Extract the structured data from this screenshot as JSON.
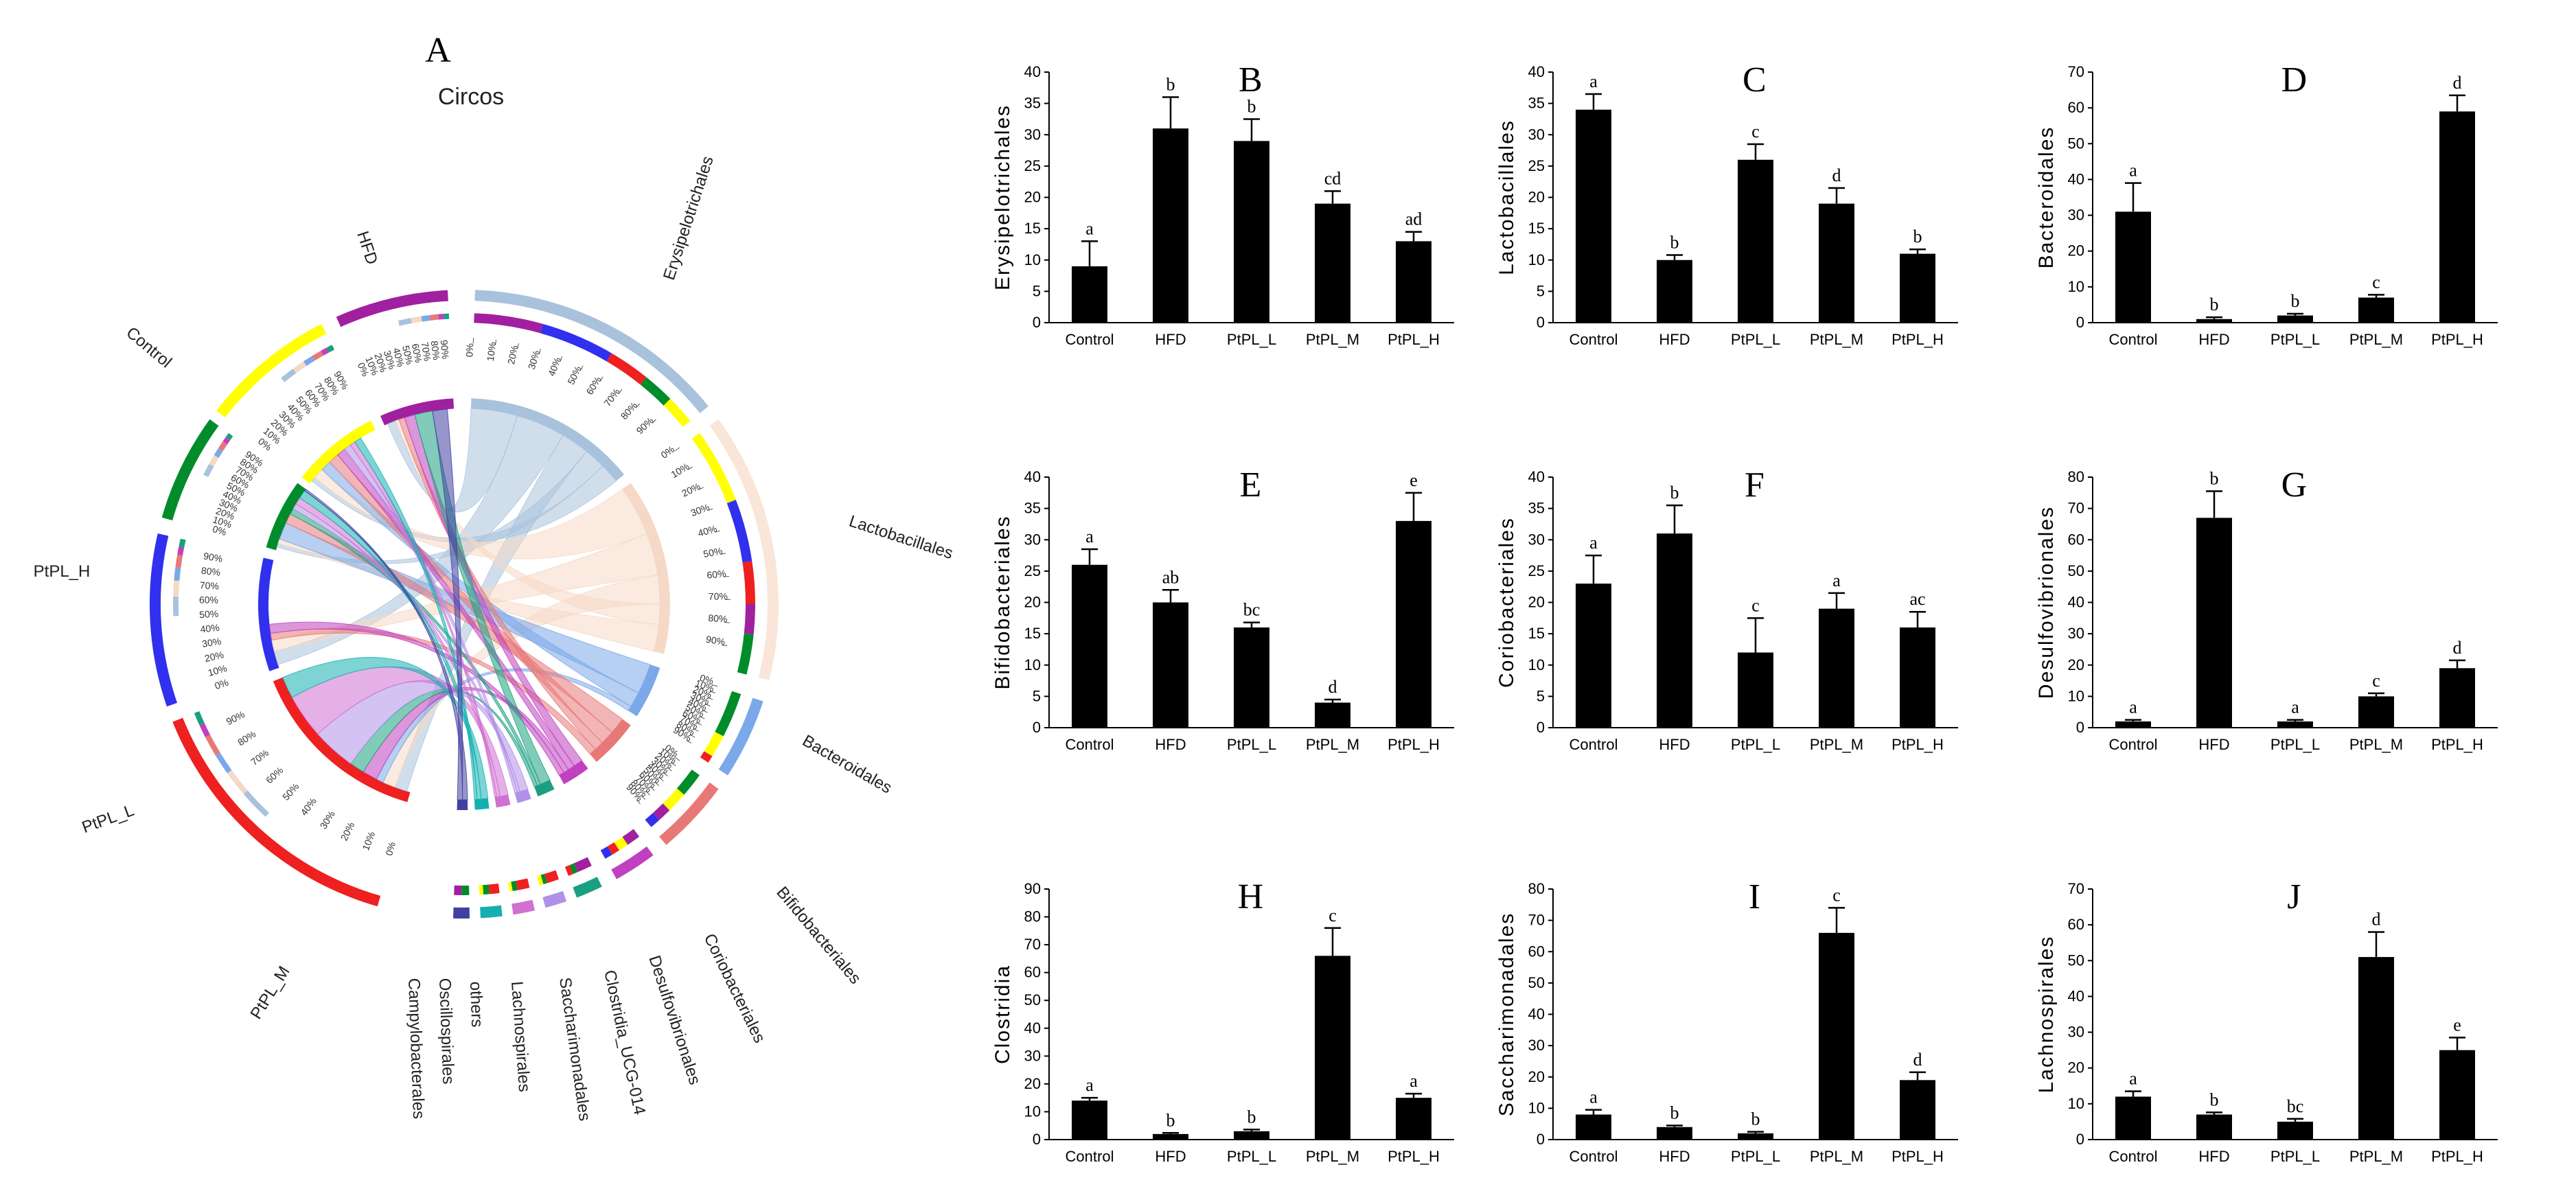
{
  "circos": {
    "panel": "A",
    "title": "Circos",
    "groups": [
      "HFD",
      "Control",
      "PtPL_H",
      "PtPL_L",
      "PtPL_M"
    ],
    "taxa": [
      "Erysipelotrichales",
      "Lactobacillales",
      "Bacteroidales",
      "Bifidobacteriales",
      "Coriobacteriales",
      "Desulfovibrionales",
      "Clostridia_UCG-014",
      "Saccharimonadales",
      "Lachnospirales",
      "others",
      "Oscillospirales",
      "Campylobacterales"
    ],
    "pct_labels": [
      "0%",
      "10%",
      "20%",
      "30%",
      "40%",
      "50%",
      "60%",
      "70%",
      "80%",
      "90%"
    ],
    "colors": {
      "HFD": "#a020a0",
      "Control": "#ffff00",
      "PtPL_H": "#008c2a",
      "PtPL_L": "#3030ee",
      "PtPL_M": "#ee2020",
      "Erysipelotrichales": "#a9c2dc",
      "Lactobacillales": "#f9e6d8",
      "Bacteroidales": "#7aa8e8",
      "Bifidobacteriales": "#e87878",
      "Coriobacteriales": "#c040c0",
      "Desulfovibrionales": "#1aa080",
      "Clostridia_UCG-014": "#b090e8",
      "Saccharimonadales": "#d070d0",
      "Lachnospirales": "#14b0b0",
      "others": "#4040a0",
      "Oscillospirales": "#ffffff",
      "Campylobacterales": "#ffffff"
    }
  },
  "chart_data": [
    {
      "panel": "B",
      "type": "bar",
      "ylabel": "Erysipelotrichales",
      "categories": [
        "Control",
        "HFD",
        "PtPL_L",
        "PtPL_M",
        "PtPL_H"
      ],
      "values": [
        9,
        31,
        29,
        19,
        13
      ],
      "errors": [
        4,
        5,
        3.5,
        2,
        1.5
      ],
      "letters": [
        "a",
        "b",
        "b",
        "cd",
        "ad"
      ],
      "ylim": [
        0,
        40
      ],
      "ticks": [
        0,
        5,
        10,
        15,
        20,
        25,
        30,
        35,
        40
      ]
    },
    {
      "panel": "C",
      "type": "bar",
      "ylabel": "Lactobacillales",
      "categories": [
        "Control",
        "HFD",
        "PtPL_L",
        "PtPL_M",
        "PtPL_H"
      ],
      "values": [
        34,
        10,
        26,
        19,
        11
      ],
      "errors": [
        2.5,
        0.8,
        2.5,
        2.5,
        0.7
      ],
      "letters": [
        "a",
        "b",
        "c",
        "d",
        "b"
      ],
      "ylim": [
        0,
        40
      ],
      "ticks": [
        0,
        5,
        10,
        15,
        20,
        25,
        30,
        35,
        40
      ]
    },
    {
      "panel": "D",
      "type": "bar",
      "ylabel": "Bacteroidales",
      "categories": [
        "Control",
        "HFD",
        "PtPL_L",
        "PtPL_M",
        "PtPL_H"
      ],
      "values": [
        31,
        1,
        2,
        7,
        59
      ],
      "errors": [
        8,
        0.5,
        0.5,
        0.8,
        4.5
      ],
      "letters": [
        "a",
        "b",
        "b",
        "c",
        "d"
      ],
      "ylim": [
        0,
        70
      ],
      "ticks": [
        0,
        10,
        20,
        30,
        40,
        50,
        60,
        70
      ]
    },
    {
      "panel": "E",
      "type": "bar",
      "ylabel": "Bifidobacteriales",
      "categories": [
        "Control",
        "HFD",
        "PtPL_L",
        "PtPL_M",
        "PtPL_H"
      ],
      "values": [
        26,
        20,
        16,
        4,
        33
      ],
      "errors": [
        2.5,
        2,
        0.8,
        0.5,
        4.5
      ],
      "letters": [
        "a",
        "ab",
        "bc",
        "d",
        "e"
      ],
      "ylim": [
        0,
        40
      ],
      "ticks": [
        0,
        5,
        10,
        15,
        20,
        25,
        30,
        35,
        40
      ]
    },
    {
      "panel": "F",
      "type": "bar",
      "ylabel": "Coriobacteriales",
      "categories": [
        "Control",
        "HFD",
        "PtPL_L",
        "PtPL_M",
        "PtPL_H"
      ],
      "values": [
        23,
        31,
        12,
        19,
        16
      ],
      "errors": [
        4.5,
        4.5,
        5.5,
        2.5,
        2.5
      ],
      "letters": [
        "a",
        "b",
        "c",
        "a",
        "ac"
      ],
      "ylim": [
        0,
        40
      ],
      "ticks": [
        0,
        5,
        10,
        15,
        20,
        25,
        30,
        35,
        40
      ]
    },
    {
      "panel": "G",
      "type": "bar",
      "ylabel": "Desulfovibrionales",
      "categories": [
        "Control",
        "HFD",
        "PtPL_L",
        "PtPL_M",
        "PtPL_H"
      ],
      "values": [
        2,
        67,
        2,
        10,
        19
      ],
      "errors": [
        0.5,
        8.5,
        0.5,
        1,
        2.5
      ],
      "letters": [
        "a",
        "b",
        "a",
        "c",
        "d"
      ],
      "ylim": [
        0,
        80
      ],
      "ticks": [
        0,
        10,
        20,
        30,
        40,
        50,
        60,
        70,
        80
      ]
    },
    {
      "panel": "H",
      "type": "bar",
      "ylabel": "Clostridia",
      "categories": [
        "Control",
        "HFD",
        "PtPL_L",
        "PtPL_M",
        "PtPL_H"
      ],
      "values": [
        14,
        2,
        3,
        66,
        15
      ],
      "errors": [
        1,
        0.4,
        0.6,
        10,
        1.5
      ],
      "letters": [
        "a",
        "b",
        "b",
        "c",
        "a"
      ],
      "ylim": [
        0,
        90
      ],
      "ticks": [
        0,
        10,
        20,
        30,
        40,
        50,
        60,
        70,
        80,
        90
      ]
    },
    {
      "panel": "I",
      "type": "bar",
      "ylabel": "Saccharimonadales",
      "categories": [
        "Control",
        "HFD",
        "PtPL_L",
        "PtPL_M",
        "PtPL_H"
      ],
      "values": [
        8,
        4,
        2,
        66,
        19
      ],
      "errors": [
        1.5,
        0.5,
        0.5,
        8,
        2.5
      ],
      "letters": [
        "a",
        "b",
        "b",
        "c",
        "d"
      ],
      "ylim": [
        0,
        80
      ],
      "ticks": [
        0,
        10,
        20,
        30,
        40,
        50,
        60,
        70,
        80
      ]
    },
    {
      "panel": "J",
      "type": "bar",
      "ylabel": "Lachnospirales",
      "categories": [
        "Control",
        "HFD",
        "PtPL_L",
        "PtPL_M",
        "PtPL_H"
      ],
      "values": [
        12,
        7,
        5,
        51,
        25
      ],
      "errors": [
        1.5,
        0.6,
        0.8,
        7,
        3.5
      ],
      "letters": [
        "a",
        "b",
        "bc",
        "d",
        "e"
      ],
      "ylim": [
        0,
        70
      ],
      "ticks": [
        0,
        10,
        20,
        30,
        40,
        50,
        60,
        70
      ]
    }
  ]
}
